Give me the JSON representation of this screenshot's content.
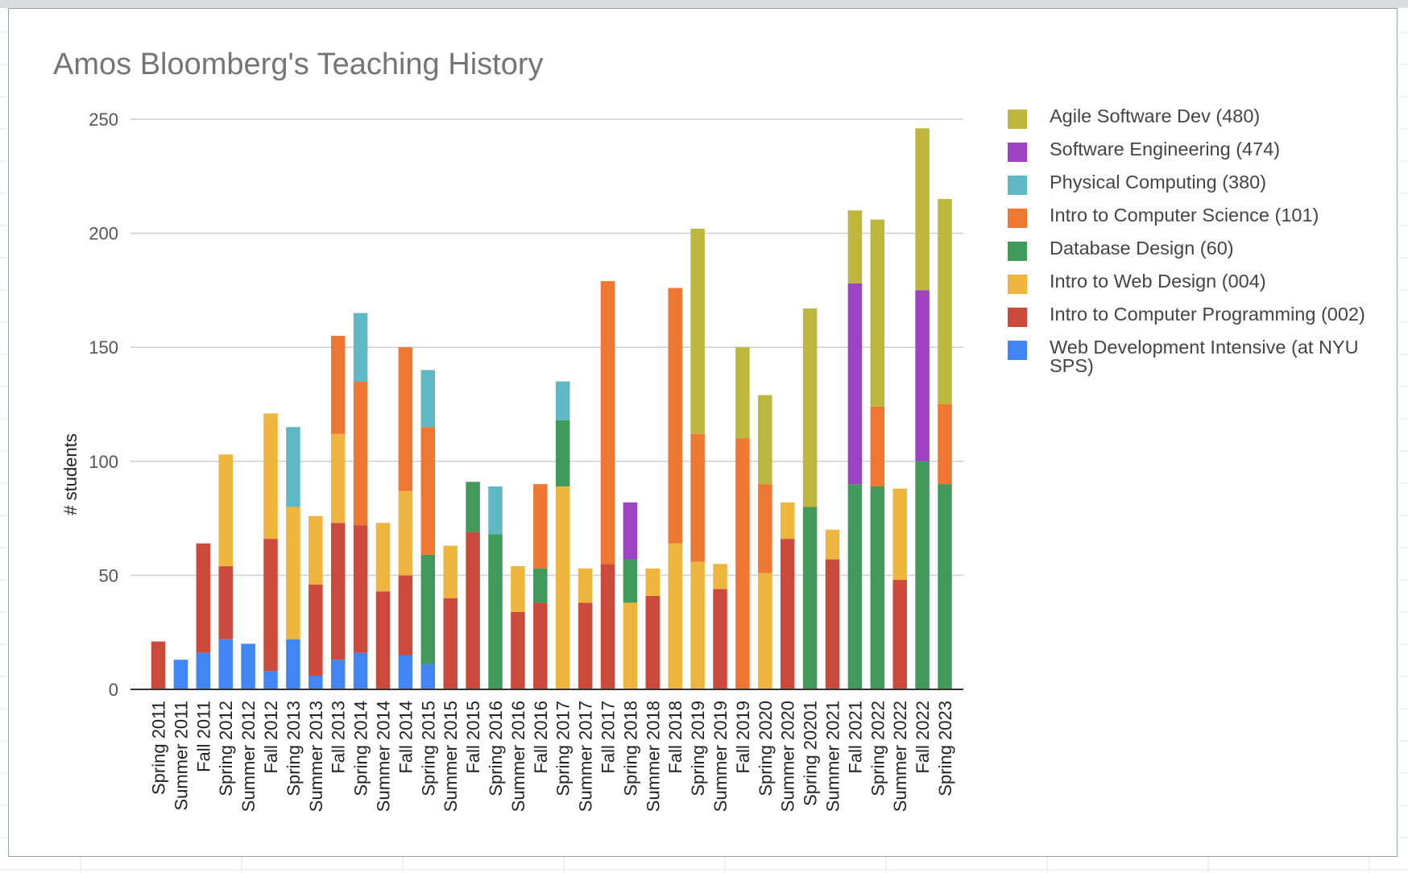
{
  "chart_data": {
    "type": "bar",
    "stacked": true,
    "title": "Amos Bloomberg's Teaching History",
    "xlabel": "",
    "ylabel": "# students",
    "ylim": [
      0,
      250
    ],
    "yticks": [
      0,
      50,
      100,
      150,
      200,
      250
    ],
    "grid": true,
    "legend_position": "right",
    "categories": [
      "Spring 2011",
      "Summer 2011",
      "Fall 2011",
      "Spring 2012",
      "Summer 2012",
      "Fall 2012",
      "Spring 2013",
      "Summer 2013",
      "Fall 2013",
      "Spring 2014",
      "Summer 2014",
      "Fall 2014",
      "Spring 2015",
      "Summer 2015",
      "Fall 2015",
      "Spring 2016",
      "Summer 2016",
      "Fall 2016",
      "Spring 2017",
      "Summer 2017",
      "Fall 2017",
      "Spring 2018",
      "Summer 2018",
      "Fall 2018",
      "Spring 2019",
      "Summer 2019",
      "Fall 2019",
      "Spring 2020",
      "Summer 2020",
      "Spring 20201",
      "Summer 2021",
      "Fall 2021",
      "Spring 2022",
      "Summer 2022",
      "Fall 2022",
      "Spring 2023"
    ],
    "series": [
      {
        "name": "Web Development Intensive (at NYU SPS)",
        "color": "#4285f4",
        "values": [
          0,
          13,
          16,
          22,
          20,
          8,
          22,
          6,
          13,
          16,
          0,
          15,
          11,
          0,
          0,
          0,
          0,
          0,
          0,
          0,
          0,
          0,
          0,
          0,
          0,
          0,
          0,
          0,
          0,
          0,
          0,
          0,
          0,
          0,
          0,
          0
        ]
      },
      {
        "name": "Intro to Computer Programming (002)",
        "color": "#cc4a3c",
        "values": [
          21,
          0,
          48,
          32,
          0,
          58,
          0,
          40,
          60,
          56,
          43,
          35,
          0,
          40,
          69,
          0,
          34,
          38,
          0,
          38,
          55,
          0,
          41,
          0,
          0,
          44,
          0,
          0,
          66,
          0,
          57,
          0,
          0,
          48,
          0,
          0
        ]
      },
      {
        "name": "Intro to Web Design (004)",
        "color": "#eeb53f",
        "values": [
          0,
          0,
          0,
          49,
          0,
          55,
          58,
          30,
          39,
          0,
          30,
          37,
          0,
          23,
          0,
          0,
          20,
          0,
          89,
          15,
          0,
          38,
          12,
          64,
          56,
          11,
          0,
          51,
          16,
          0,
          13,
          0,
          0,
          40,
          0,
          0
        ]
      },
      {
        "name": "Database Design (60)",
        "color": "#419a5a",
        "values": [
          0,
          0,
          0,
          0,
          0,
          0,
          0,
          0,
          0,
          0,
          0,
          0,
          48,
          0,
          22,
          68,
          0,
          15,
          29,
          0,
          0,
          19,
          0,
          0,
          0,
          0,
          0,
          0,
          0,
          80,
          0,
          90,
          89,
          0,
          100,
          90
        ]
      },
      {
        "name": "Intro to Computer Science (101)",
        "color": "#ee7733",
        "values": [
          0,
          0,
          0,
          0,
          0,
          0,
          0,
          0,
          43,
          63,
          0,
          63,
          56,
          0,
          0,
          0,
          0,
          37,
          0,
          0,
          124,
          0,
          0,
          112,
          56,
          0,
          110,
          39,
          0,
          0,
          0,
          0,
          35,
          0,
          0,
          35
        ]
      },
      {
        "name": "Physical Computing (380)",
        "color": "#5fb8c3",
        "values": [
          0,
          0,
          0,
          0,
          0,
          0,
          35,
          0,
          0,
          30,
          0,
          0,
          25,
          0,
          0,
          21,
          0,
          0,
          17,
          0,
          0,
          0,
          0,
          0,
          0,
          0,
          0,
          0,
          0,
          0,
          0,
          0,
          0,
          0,
          0,
          0
        ]
      },
      {
        "name": "Software Engineering (474)",
        "color": "#9c42c2",
        "values": [
          0,
          0,
          0,
          0,
          0,
          0,
          0,
          0,
          0,
          0,
          0,
          0,
          0,
          0,
          0,
          0,
          0,
          0,
          0,
          0,
          0,
          25,
          0,
          0,
          0,
          0,
          0,
          0,
          0,
          0,
          0,
          88,
          0,
          0,
          75,
          0
        ]
      },
      {
        "name": "Agile Software Dev (480)",
        "color": "#bdb73d",
        "values": [
          0,
          0,
          0,
          0,
          0,
          0,
          0,
          0,
          0,
          0,
          0,
          0,
          0,
          0,
          0,
          0,
          0,
          0,
          0,
          0,
          0,
          0,
          0,
          0,
          90,
          0,
          40,
          39,
          0,
          87,
          0,
          32,
          82,
          0,
          71,
          90
        ]
      }
    ]
  }
}
